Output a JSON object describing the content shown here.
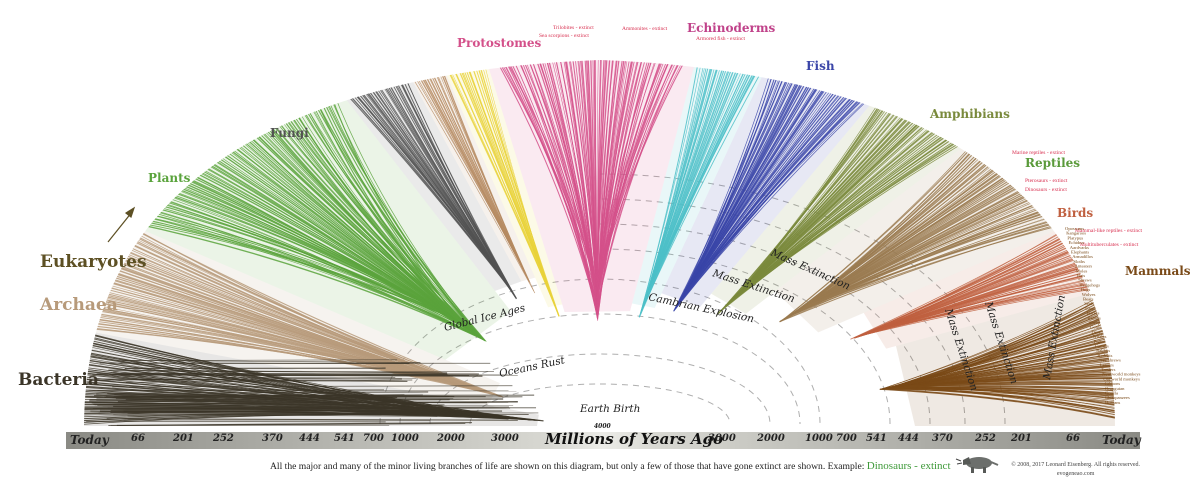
{
  "group_labels": {
    "bacteria": "Bacteria",
    "archaea": "Archaea",
    "eukaryotes": "Eukaryotes",
    "plants": "Plants",
    "fungi": "Fungi",
    "protostomes": "Protostomes",
    "echinoderms": "Echinoderms",
    "fish": "Fish",
    "amphibians": "Amphibians",
    "reptiles": "Reptiles",
    "birds": "Birds",
    "mammals": "Mammals"
  },
  "events": {
    "earth_birth": "Earth Birth",
    "oceans_rust": "Oceans Rust",
    "global_ice_ages": "Global Ice Ages",
    "cambrian_explosion": "Cambrian Explosion",
    "mass_extinction": "Mass Extinction"
  },
  "extinct_notes": {
    "trilobites": "Trilobites - extinct",
    "sea_scorpions": "Sea scorpions - extinct",
    "ammonites": "Ammonites - extinct",
    "armored_fish": "Armored fish - extinct",
    "marine_reptiles": "Marine reptiles - extinct",
    "pterosaurs": "Pterosaurs - extinct",
    "dinosaurs": "Dinosaurs - extinct",
    "mammal_like_reptiles": "Mammal-like reptiles - extinct",
    "multituberculates": "Multituberculates - extinct"
  },
  "mammal_leaves": [
    "Opossums",
    "Kangaroos",
    "Platypus",
    "Echidna",
    "Aardvarks",
    "Elephants",
    "Armadillos",
    "Sloths",
    "Anteaters",
    "Moles",
    "Bats",
    "Shrews",
    "Hedgehogs",
    "Dogs",
    "Wolves",
    "Bears",
    "Seals",
    "Cats",
    "Horses",
    "Rhinos",
    "Sheep",
    "Goats",
    "Deer",
    "Whales",
    "Pigs",
    "Camels",
    "Rabbits",
    "Rodents",
    "Tree shrews",
    "Lemurs",
    "Tarsiers",
    "New world monkeys",
    "Old world monkeys",
    "Gibbons",
    "Orangutan",
    "Gorilla",
    "Chimpanzees",
    "Humans"
  ],
  "axis": {
    "title": "Millions of Years Ago",
    "center": "4000",
    "left_ticks": [
      "Today",
      "66",
      "201",
      "252",
      "370",
      "444",
      "541",
      "700",
      "1000",
      "2000",
      "3000"
    ],
    "right_ticks": [
      "3000",
      "2000",
      "1000",
      "700",
      "541",
      "444",
      "370",
      "252",
      "201",
      "66",
      "Today"
    ]
  },
  "footer": {
    "note": "All the major and many of the minor living branches of life are shown on this diagram, but only a few of those that have gone extinct are shown. Example:",
    "example": "Dinosaurs - extinct"
  },
  "copyright": {
    "line1": "© 2008, 2017 Leonard Eisenberg. All rights reserved.",
    "line2": "evogeneao.com"
  },
  "colors": {
    "bacteria": "#3b3528",
    "archaea": "#b79a7a",
    "eukaryote_label": "#5d5024",
    "plants": "#5aa33c",
    "fungi": "#525252",
    "yellow": "#e9d23a",
    "protostomes": "#d4508a",
    "echinoderms": "#c0428a",
    "teal": "#4cc0c8",
    "fish": "#3a45a8",
    "amphibians": "#7a8a3c",
    "reptiles": "#5a9a3a",
    "birds": "#c06040",
    "mammals": "#7a4a18",
    "extinct_red": "#d83050"
  }
}
